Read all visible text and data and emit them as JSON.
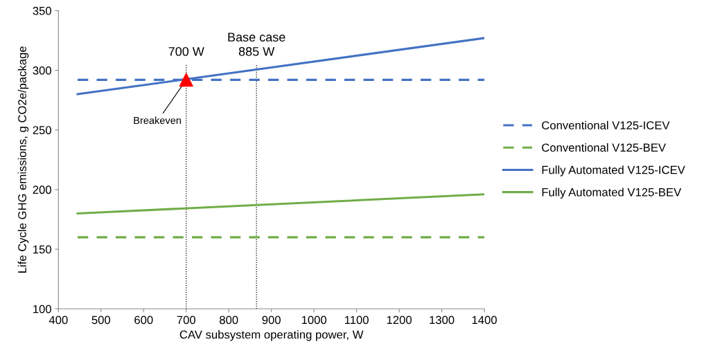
{
  "chart_data": {
    "type": "line",
    "xlabel": "CAV subsystem operating power, W",
    "ylabel": "Life Cycle GHG emissions, g CO2e/package",
    "xlim": [
      400,
      1400
    ],
    "xticks": [
      400,
      500,
      600,
      700,
      800,
      900,
      1000,
      1100,
      1200,
      1300,
      1400
    ],
    "ylim": [
      100,
      350
    ],
    "yticks": [
      100,
      150,
      200,
      250,
      300,
      350
    ],
    "grid": false,
    "legend": "right",
    "series": [
      {
        "name": "Conventional V125-ICEV",
        "color": "#4472c4",
        "line_style": "dashed",
        "x": [
          445,
          1400
        ],
        "values": [
          292,
          292
        ]
      },
      {
        "name": "Conventional V125-BEV",
        "color": "#70ad47",
        "line_style": "dashed",
        "x": [
          445,
          1400
        ],
        "values": [
          160,
          160
        ]
      },
      {
        "name": "Fully Automated V125-ICEV",
        "color": "#4472c4",
        "line_style": "solid",
        "x": [
          445,
          1400
        ],
        "values": [
          280,
          327
        ]
      },
      {
        "name": "Fully Automated V125-BEV",
        "color": "#70ad47",
        "line_style": "solid",
        "x": [
          445,
          1400
        ],
        "values": [
          180,
          196
        ]
      },
      {
        "type": "scatter",
        "color": "#ff0000",
        "marker": "triangle",
        "x": [
          700
        ],
        "values": [
          292
        ]
      }
    ],
    "ref_lines": [
      {
        "axis": "x",
        "value": 700,
        "label": "700 W",
        "color": "#000000",
        "line_style": "dotted"
      },
      {
        "axis": "x",
        "value": 865,
        "label": "Base case\n885 W",
        "color": "#000000",
        "line_style": "dotted"
      }
    ],
    "annotations": [
      {
        "text": "Breakeven",
        "x": 700,
        "y": 292
      }
    ]
  }
}
